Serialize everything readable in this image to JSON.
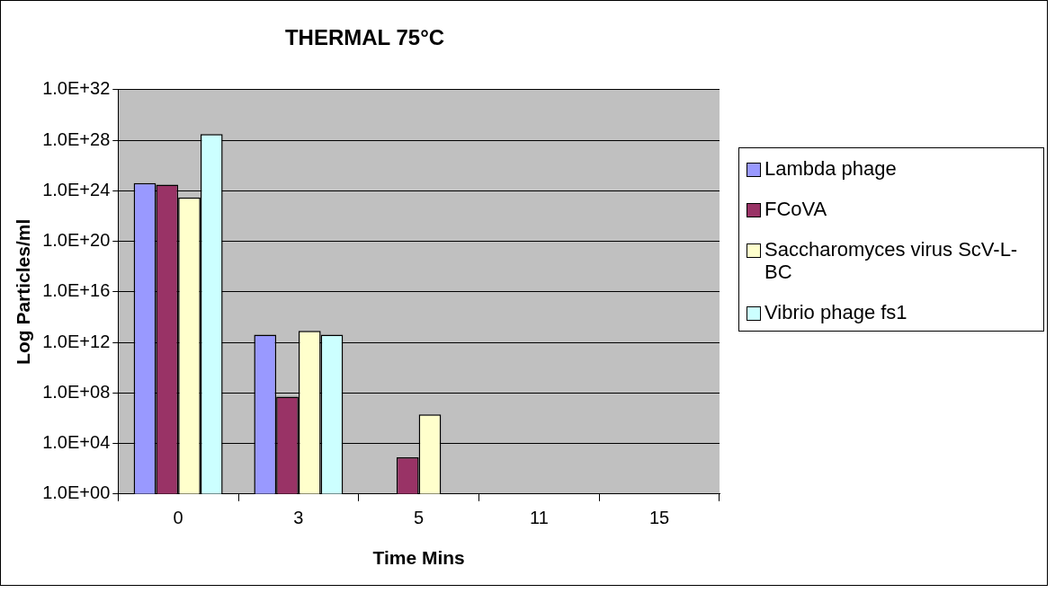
{
  "chart_data": {
    "type": "bar",
    "title": "THERMAL 75°C",
    "xlabel": "Time Mins",
    "ylabel": "Log Particles/ml",
    "categories": [
      "0",
      "3",
      "5",
      "11",
      "15"
    ],
    "series": [
      {
        "name": "Lambda phage",
        "color": "#9999ff",
        "values": [
          4e+24,
          4000000000000.0,
          null,
          null,
          null
        ]
      },
      {
        "name": "FCoVA",
        "color": "#993366",
        "values": [
          3e+24,
          50000000.0,
          800.0,
          null,
          null
        ]
      },
      {
        "name": "Saccharomyces virus ScV-L-BC",
        "color": "#ffffcc",
        "values": [
          3e+23,
          8000000000000.0,
          2000000.0,
          null,
          null
        ]
      },
      {
        "name": "Vibrio phage fs1",
        "color": "#ccffff",
        "values": [
          3e+28,
          4000000000000.0,
          null,
          null,
          null
        ]
      }
    ],
    "log": "y",
    "ylim": [
      1,
      1e+32
    ],
    "yticks": [
      {
        "value": 1,
        "label": "1.0E+00"
      },
      {
        "value": 10000.0,
        "label": "1.0E+04"
      },
      {
        "value": 100000000.0,
        "label": "1.0E+08"
      },
      {
        "value": 1000000000000.0,
        "label": "1.0E+12"
      },
      {
        "value": 1e+16,
        "label": "1.0E+16"
      },
      {
        "value": 1e+20,
        "label": "1.0E+20"
      },
      {
        "value": 1e+24,
        "label": "1.0E+24"
      },
      {
        "value": 1e+28,
        "label": "1.0E+28"
      },
      {
        "value": 1e+32,
        "label": "1.0E+32"
      }
    ],
    "grid": "y",
    "legend": "right"
  }
}
